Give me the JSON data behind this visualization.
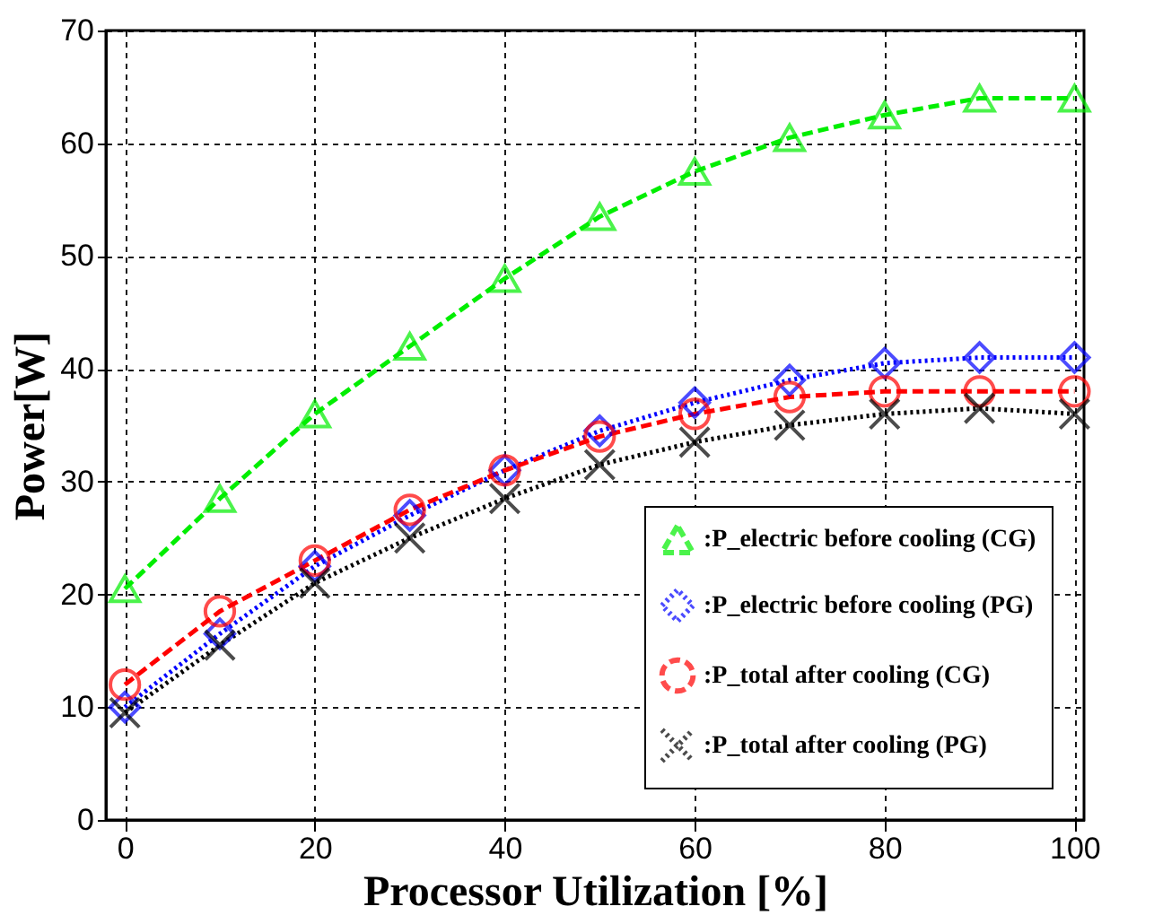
{
  "chart_data": {
    "type": "line",
    "xlabel": "Processor Utilization [%]",
    "ylabel": "Power[W]",
    "x": [
      0,
      10,
      20,
      30,
      40,
      50,
      60,
      70,
      80,
      90,
      100
    ],
    "xlim": [
      -2,
      101
    ],
    "xticks": [
      0,
      20,
      40,
      60,
      80,
      100
    ],
    "ylim": [
      0,
      70
    ],
    "yticks": [
      0,
      10,
      20,
      30,
      40,
      50,
      60,
      70
    ],
    "grid": true,
    "legend": "bottom right",
    "series": [
      {
        "name": ":P_electric before cooling (CG)",
        "color": "#00ee00",
        "marker": "triangle",
        "line_style": "dashed",
        "values": [
          20.5,
          28.5,
          36,
          42,
          48,
          53.5,
          57.5,
          60.5,
          62.5,
          64,
          64
        ]
      },
      {
        "name": ":P_electric before cooling (PG)",
        "color": "#0000ff",
        "marker": "diamond",
        "line_style": "dotted",
        "values": [
          10,
          16.5,
          22.5,
          27,
          31,
          34.5,
          37,
          39,
          40.5,
          41,
          41
        ]
      },
      {
        "name": ":P_total after cooling (CG)",
        "color": "#ff0000",
        "marker": "circle",
        "line_style": "dashed",
        "values": [
          12,
          18.5,
          23,
          27.5,
          31,
          34,
          36,
          37.5,
          38,
          38,
          38
        ]
      },
      {
        "name": ":P_total after cooling (PG)",
        "color": "#000000",
        "marker": "cross",
        "line_style": "dotted",
        "values": [
          9.5,
          15.5,
          21,
          25,
          28.5,
          31.5,
          33.5,
          35,
          36,
          36.5,
          36
        ]
      }
    ]
  }
}
